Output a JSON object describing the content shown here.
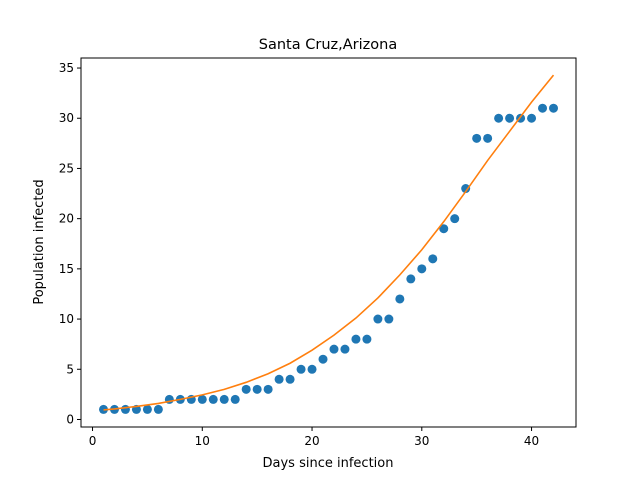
{
  "chart_data": {
    "type": "scatter",
    "title": "Santa Cruz,Arizona",
    "xlabel": "Days since infection",
    "ylabel": "Population infected",
    "xlim": [
      -1.05,
      44.05
    ],
    "ylim": [
      -0.75,
      36.0
    ],
    "xticks": [
      0,
      10,
      20,
      30,
      40
    ],
    "yticks": [
      0,
      5,
      10,
      15,
      20,
      25,
      30,
      35
    ],
    "grid": false,
    "series": [
      {
        "kind": "scatter",
        "color": "#1f77b4",
        "x": [
          1,
          2,
          3,
          4,
          5,
          6,
          7,
          8,
          9,
          10,
          11,
          12,
          13,
          14,
          15,
          16,
          17,
          18,
          19,
          20,
          21,
          22,
          23,
          24,
          25,
          26,
          27,
          28,
          29,
          30,
          31,
          32,
          33,
          34,
          35,
          36,
          37,
          38,
          39,
          40,
          41,
          42
        ],
        "y": [
          1,
          1,
          1,
          1,
          1,
          1,
          2,
          2,
          2,
          2,
          2,
          2,
          2,
          3,
          3,
          3,
          4,
          4,
          5,
          5,
          6,
          7,
          7,
          8,
          8,
          10,
          10,
          12,
          14,
          15,
          16,
          19,
          20,
          23,
          28,
          28,
          30,
          30,
          30,
          30,
          31,
          31
        ]
      },
      {
        "kind": "line",
        "color": "#ff7f0e",
        "x": [
          1,
          2,
          4,
          6,
          8,
          10,
          12,
          14,
          16,
          18,
          20,
          22,
          24,
          26,
          28,
          30,
          32,
          34,
          36,
          38,
          40,
          42
        ],
        "y": [
          0.95,
          1.05,
          1.3,
          1.6,
          2.0,
          2.45,
          3.0,
          3.7,
          4.55,
          5.6,
          6.9,
          8.4,
          10.1,
          12.1,
          14.4,
          16.9,
          19.7,
          22.7,
          25.8,
          28.7,
          31.6,
          34.3
        ]
      }
    ]
  }
}
